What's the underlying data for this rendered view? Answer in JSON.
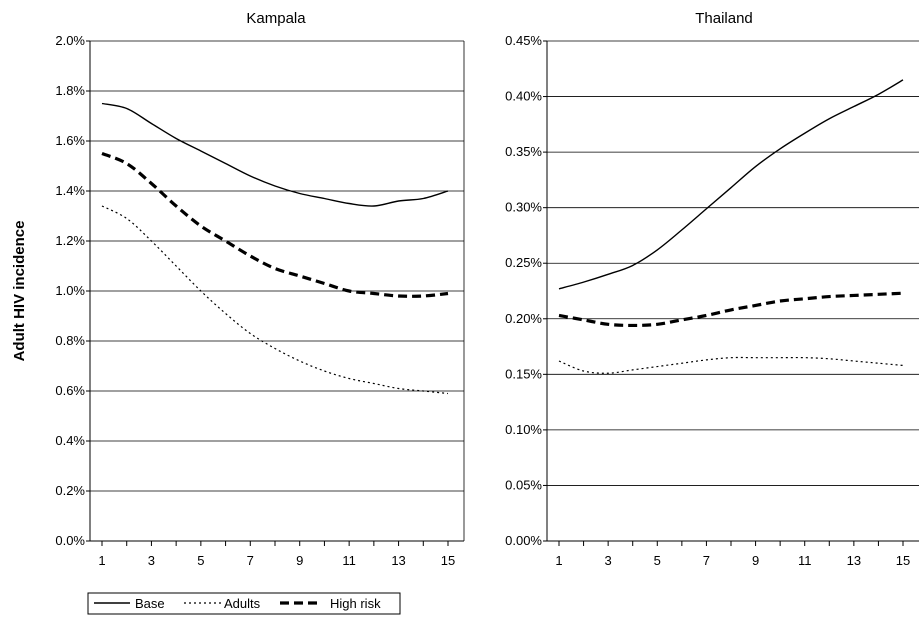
{
  "ylabel": "Adult HIV incidence",
  "colors": {
    "line": "#000000",
    "grid": "#000000",
    "background": "#ffffff"
  },
  "legend": {
    "placement": "bottom-left",
    "items": [
      {
        "label": "Base",
        "style": "solid"
      },
      {
        "label": "Adults",
        "style": "dotted"
      },
      {
        "label": "High risk",
        "style": "dashed"
      }
    ]
  },
  "chart_data": [
    {
      "type": "line",
      "title": "Kampala",
      "ylabel": "Adult HIV incidence",
      "xlabel": "",
      "grid": true,
      "ylim": [
        0,
        2.0
      ],
      "yticks": [
        0,
        0.2,
        0.4,
        0.6,
        0.8,
        1.0,
        1.2,
        1.4,
        1.6,
        1.8,
        2.0
      ],
      "ytick_labels": [
        "0.0%",
        "0.2%",
        "0.4%",
        "0.6%",
        "0.8%",
        "1.0%",
        "1.2%",
        "1.4%",
        "1.6%",
        "1.8%",
        "2.0%"
      ],
      "xlim": [
        1,
        15
      ],
      "xticks": [
        1,
        3,
        5,
        7,
        9,
        11,
        13,
        15
      ],
      "x": [
        1,
        2,
        3,
        4,
        5,
        6,
        7,
        8,
        9,
        10,
        11,
        12,
        13,
        14,
        15
      ],
      "series": [
        {
          "name": "Base",
          "style": "solid",
          "values": [
            1.75,
            1.73,
            1.67,
            1.61,
            1.56,
            1.51,
            1.46,
            1.42,
            1.39,
            1.37,
            1.35,
            1.34,
            1.36,
            1.37,
            1.4
          ]
        },
        {
          "name": "Adults",
          "style": "dotted",
          "values": [
            1.34,
            1.29,
            1.2,
            1.1,
            1.0,
            0.91,
            0.83,
            0.77,
            0.72,
            0.68,
            0.65,
            0.63,
            0.61,
            0.6,
            0.59
          ]
        },
        {
          "name": "High risk",
          "style": "dashed",
          "values": [
            1.55,
            1.51,
            1.43,
            1.34,
            1.26,
            1.2,
            1.14,
            1.09,
            1.06,
            1.03,
            1.0,
            0.99,
            0.98,
            0.98,
            0.99
          ]
        }
      ]
    },
    {
      "type": "line",
      "title": "Thailand",
      "xlabel": "",
      "ylabel": "",
      "grid": true,
      "ylim": [
        0,
        0.45
      ],
      "yticks": [
        0,
        0.05,
        0.1,
        0.15,
        0.2,
        0.25,
        0.3,
        0.35,
        0.4,
        0.45
      ],
      "ytick_labels": [
        "0.00%",
        "0.05%",
        "0.10%",
        "0.15%",
        "0.20%",
        "0.25%",
        "0.30%",
        "0.35%",
        "0.40%",
        "0.45%"
      ],
      "xlim": [
        1,
        15
      ],
      "xticks": [
        1,
        3,
        5,
        7,
        9,
        11,
        13,
        15
      ],
      "x": [
        1,
        2,
        3,
        4,
        5,
        6,
        7,
        8,
        9,
        10,
        11,
        12,
        13,
        14,
        15
      ],
      "series": [
        {
          "name": "Base",
          "style": "solid",
          "values": [
            0.227,
            0.233,
            0.24,
            0.248,
            0.262,
            0.28,
            0.299,
            0.318,
            0.337,
            0.353,
            0.367,
            0.38,
            0.391,
            0.402,
            0.415
          ]
        },
        {
          "name": "Adults",
          "style": "dotted",
          "values": [
            0.162,
            0.153,
            0.151,
            0.154,
            0.157,
            0.16,
            0.163,
            0.165,
            0.165,
            0.165,
            0.165,
            0.164,
            0.162,
            0.16,
            0.158
          ]
        },
        {
          "name": "High risk",
          "style": "dashed",
          "values": [
            0.203,
            0.199,
            0.195,
            0.194,
            0.195,
            0.199,
            0.203,
            0.208,
            0.212,
            0.216,
            0.218,
            0.22,
            0.221,
            0.222,
            0.223
          ]
        }
      ]
    }
  ]
}
